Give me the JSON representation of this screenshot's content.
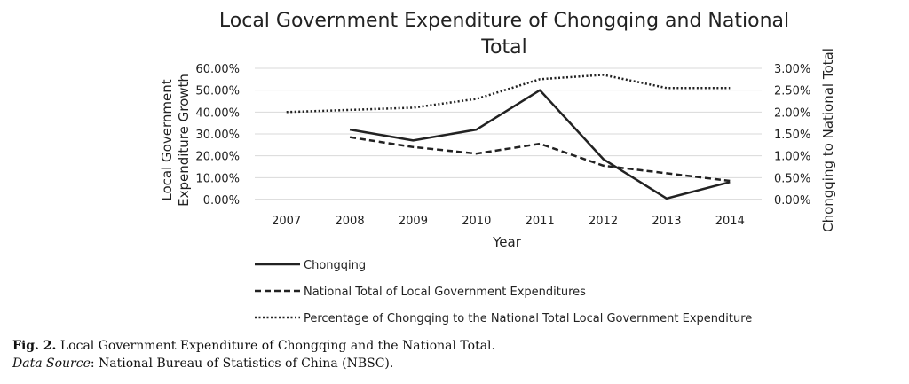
{
  "chart_data": {
    "type": "line",
    "title": [
      "Local Government Expenditure of Chongqing and National",
      "Total"
    ],
    "xlabel": "Year",
    "ylabel_left": [
      "Local Government",
      "Expenditure Growth"
    ],
    "ylabel_right": "Chongqing to National Total",
    "categories": [
      "2007",
      "2008",
      "2009",
      "2010",
      "2011",
      "2012",
      "2013",
      "2014"
    ],
    "ylim_left": [
      0,
      60
    ],
    "ylim_right": [
      0,
      3
    ],
    "left_ticks": [
      "0.00%",
      "10.00%",
      "20.00%",
      "30.00%",
      "40.00%",
      "50.00%",
      "60.00%"
    ],
    "right_ticks": [
      "0.00%",
      "0.50%",
      "1.00%",
      "1.50%",
      "2.00%",
      "2.50%",
      "3.00%"
    ],
    "grid": true,
    "legend_position": "bottom",
    "series": [
      {
        "name": "Chongqing",
        "axis": "left",
        "style": "solid",
        "values": [
          null,
          32.0,
          27.0,
          32.0,
          50.0,
          18.5,
          0.5,
          8.0
        ]
      },
      {
        "name": "National Total of Local Government Expenditures",
        "axis": "left",
        "style": "dashed",
        "values": [
          null,
          28.5,
          24.0,
          21.0,
          25.5,
          15.5,
          12.0,
          8.5
        ]
      },
      {
        "name": "Percentage of Chongqing to the National Total Local Government Expenditure",
        "axis": "right",
        "style": "dotted",
        "values": [
          2.0,
          2.05,
          2.1,
          2.3,
          2.75,
          2.85,
          2.55,
          2.55
        ]
      }
    ]
  },
  "caption": {
    "label": "Fig. 2.",
    "text": " Local Government Expenditure of Chongqing and the National Total.",
    "source_label": "Data Source",
    "source_text": ": National Bureau of Statistics of China (NBSC)."
  }
}
